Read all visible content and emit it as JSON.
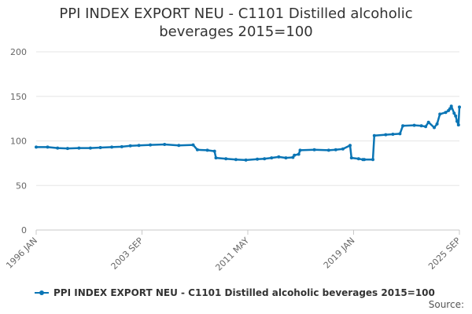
{
  "chart_data": {
    "type": "line",
    "title_lines": [
      "PPI INDEX EXPORT NEU - C1101 Distilled alcoholic",
      "beverages 2015=100"
    ],
    "x_ticks": [
      "1996 JAN",
      "2003 SEP",
      "2011 MAY",
      "2019 JAN",
      "2025 SEP"
    ],
    "y_ticks": [
      "0",
      "50",
      "100",
      "150",
      "200"
    ],
    "ylim": [
      0,
      200
    ],
    "xlim": [
      1996.0,
      2025.667
    ],
    "grid": "horizontal",
    "legend_position": "bottom-left",
    "credit": "Source:",
    "series": [
      {
        "name": "PPI INDEX EXPORT NEU - C1101 Distilled alcoholic beverages 2015=100",
        "color": "#0a75b5",
        "points": [
          [
            1996.0,
            93
          ],
          [
            1996.8,
            93
          ],
          [
            1997.5,
            92
          ],
          [
            1998.2,
            91.5
          ],
          [
            1999.0,
            92
          ],
          [
            1999.8,
            92
          ],
          [
            2000.5,
            92.5
          ],
          [
            2001.3,
            93
          ],
          [
            2002.0,
            93.5
          ],
          [
            2002.6,
            94.5
          ],
          [
            2003.2,
            95
          ],
          [
            2004.0,
            95.5
          ],
          [
            2005.0,
            96
          ],
          [
            2006.0,
            95
          ],
          [
            2007.0,
            95.5
          ],
          [
            2007.3,
            90
          ],
          [
            2008.0,
            89.5
          ],
          [
            2008.5,
            88.5
          ],
          [
            2008.6,
            81
          ],
          [
            2009.3,
            80
          ],
          [
            2010.0,
            79
          ],
          [
            2010.7,
            78.5
          ],
          [
            2011.5,
            79.5
          ],
          [
            2012.0,
            80
          ],
          [
            2012.5,
            81
          ],
          [
            2013.0,
            82
          ],
          [
            2013.5,
            81
          ],
          [
            2014.0,
            81.5
          ],
          [
            2014.1,
            84
          ],
          [
            2014.4,
            85
          ],
          [
            2014.5,
            89.5
          ],
          [
            2015.5,
            90
          ],
          [
            2016.5,
            89.5
          ],
          [
            2017.0,
            90
          ],
          [
            2017.5,
            91
          ],
          [
            2018.0,
            95
          ],
          [
            2018.1,
            81
          ],
          [
            2018.6,
            80
          ],
          [
            2018.9,
            79
          ],
          [
            2019.0,
            79
          ],
          [
            2019.6,
            79
          ],
          [
            2019.7,
            106
          ],
          [
            2020.5,
            107
          ],
          [
            2021.0,
            107.5
          ],
          [
            2021.5,
            108
          ],
          [
            2021.7,
            117
          ],
          [
            2022.5,
            117.5
          ],
          [
            2023.0,
            117
          ],
          [
            2023.3,
            116
          ],
          [
            2023.5,
            121
          ],
          [
            2023.9,
            115
          ],
          [
            2024.1,
            119
          ],
          [
            2024.3,
            130
          ],
          [
            2024.7,
            132
          ],
          [
            2024.9,
            134
          ],
          [
            2025.0,
            136
          ],
          [
            2025.1,
            139
          ],
          [
            2025.3,
            131
          ],
          [
            2025.4,
            128
          ],
          [
            2025.5,
            122
          ],
          [
            2025.6,
            118
          ],
          [
            2025.667,
            138
          ]
        ]
      }
    ]
  }
}
